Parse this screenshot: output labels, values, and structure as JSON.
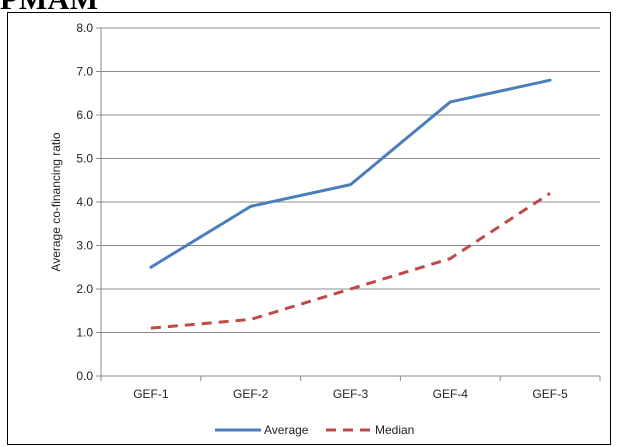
{
  "heading": "PMAM",
  "chart_data": {
    "type": "line",
    "categories": [
      "GEF-1",
      "GEF-2",
      "GEF-3",
      "GEF-4",
      "GEF-5"
    ],
    "series": [
      {
        "name": "Average",
        "values": [
          2.5,
          3.9,
          4.4,
          6.3,
          6.8
        ],
        "color": "#4a7ebb",
        "dash": "solid"
      },
      {
        "name": "Median",
        "values": [
          1.1,
          1.3,
          2.0,
          2.7,
          4.2
        ],
        "color": "#be4b48",
        "dash": "dashed"
      }
    ],
    "ylabel": "Average co-financing ratio",
    "xlabel": "",
    "ylim": [
      0,
      8
    ],
    "yticks": [
      "0.0",
      "1.0",
      "2.0",
      "3.0",
      "4.0",
      "5.0",
      "6.0",
      "7.0",
      "8.0"
    ],
    "grid": true,
    "legend_position": "bottom"
  }
}
